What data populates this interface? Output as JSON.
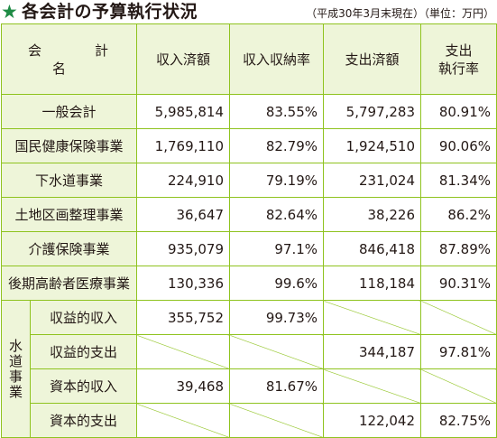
{
  "title": "各会計の予算執行状況",
  "note": "（平成30年3月末現在）（単位：万円）",
  "headers": {
    "name": "会　計　名",
    "col1": "収入済額",
    "col2": "収入収納率",
    "col3": "支出済額",
    "col4_line1": "支出",
    "col4_line2": "執行率"
  },
  "rows": [
    {
      "name": "一般会計",
      "income": "5,985,814",
      "income_rate": "83.55%",
      "expense": "5,797,283",
      "expense_rate": "80.91%"
    },
    {
      "name": "国民健康保険事業",
      "income": "1,769,110",
      "income_rate": "82.79%",
      "expense": "1,924,510",
      "expense_rate": "90.06%"
    },
    {
      "name": "下水道事業",
      "income": "224,910",
      "income_rate": "79.19%",
      "expense": "231,024",
      "expense_rate": "81.34%"
    },
    {
      "name": "土地区画整理事業",
      "income": "36,647",
      "income_rate": "82.64%",
      "expense": "38,226",
      "expense_rate": "86.2%"
    },
    {
      "name": "介護保険事業",
      "income": "935,079",
      "income_rate": "97.1%",
      "expense": "846,418",
      "expense_rate": "87.89%"
    },
    {
      "name": "後期高齢者医療事業",
      "income": "130,336",
      "income_rate": "99.6%",
      "expense": "118,184",
      "expense_rate": "90.31%"
    }
  ],
  "water": {
    "group_chars": [
      "水",
      "道",
      "事",
      "業"
    ],
    "rows": [
      {
        "name": "収益的収入",
        "income": "355,752",
        "income_rate": "99.73%"
      },
      {
        "name": "収益的支出",
        "expense": "344,187",
        "expense_rate": "97.81%"
      },
      {
        "name": "資本的収入",
        "income": "39,468",
        "income_rate": "81.67%"
      },
      {
        "name": "資本的支出",
        "expense": "122,042",
        "expense_rate": "82.75%"
      }
    ]
  }
}
